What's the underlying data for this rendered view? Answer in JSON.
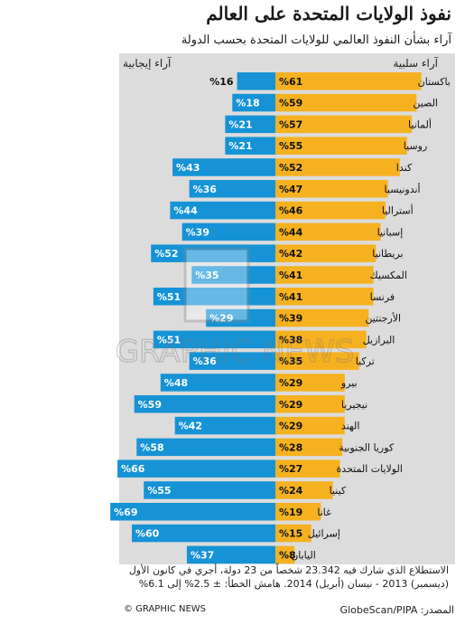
{
  "header": {
    "title": "نفوذ الولايات المتحدة على العالم",
    "subtitle": "آراء بشأن النفوذ العالمي للولايات المتحدة بحسب الدولة"
  },
  "legend": {
    "negative_label": "آراء سلبية",
    "positive_label": "آراء إيجابية"
  },
  "footer": {
    "note": "الاستطلاع الذي شارك فيه 23.342 شخصاً من 23 دولة، أجري في كانون الأول (ديسمبر) 2013 - نيسان (أبريل) 2014. هامش الخطأ: ± 2.5% إلى 6.1%",
    "source": "المصدر: GlobeScan/PIPA",
    "credit": "© GRAPHIC NEWS"
  },
  "watermark": "GRAPHIC NEWS",
  "colors": {
    "negative": "#f6b120",
    "positive": "#1593d6",
    "panel": "#dcdcdc"
  },
  "chart_data": {
    "type": "bar",
    "categories": [
      "باكستان",
      "الصين",
      "ألمانيا",
      "روسيا",
      "كندا",
      "أندونيسيا",
      "أستراليا",
      "إسبانيا",
      "بريطانيا",
      "المكسيك",
      "فرنسا",
      "الأرجنتين",
      "البرازيل",
      "تركيا",
      "بيرو",
      "نيجيريا",
      "الهند",
      "كوريا الجنوبية",
      "الولايات المتحدة",
      "كينيا",
      "غانا",
      "إسرائيل",
      "اليابان"
    ],
    "series": [
      {
        "name": "آراء سلبية",
        "values": [
          61,
          59,
          57,
          55,
          52,
          47,
          46,
          44,
          42,
          41,
          41,
          39,
          38,
          35,
          29,
          29,
          29,
          28,
          27,
          24,
          19,
          15,
          8
        ]
      },
      {
        "name": "آراء إيجابية",
        "values": [
          16,
          18,
          21,
          21,
          43,
          36,
          44,
          39,
          52,
          35,
          51,
          29,
          51,
          36,
          48,
          59,
          42,
          58,
          66,
          55,
          69,
          60,
          37
        ]
      }
    ],
    "value_suffix": "%"
  }
}
